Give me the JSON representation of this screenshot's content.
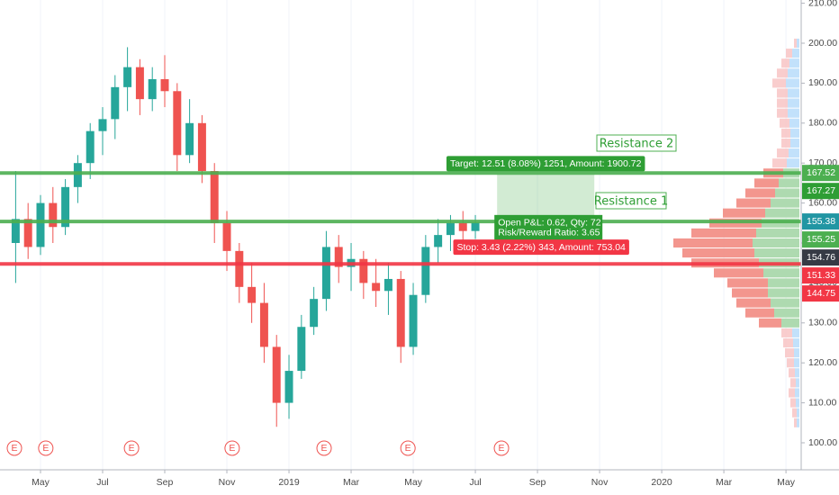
{
  "chart_data": {
    "type": "candlestick",
    "xlim": [
      2.696,
      28.49
    ],
    "ylim": [
      93.24,
      210.81
    ],
    "xticks": [
      {
        "value": 4,
        "label": "May"
      },
      {
        "value": 6,
        "label": "Jul"
      },
      {
        "value": 8,
        "label": "Sep"
      },
      {
        "value": 10,
        "label": "Nov"
      },
      {
        "value": 12,
        "label": "2019"
      },
      {
        "value": 14,
        "label": "Mar"
      },
      {
        "value": 16,
        "label": "May"
      },
      {
        "value": 18,
        "label": "Jul"
      },
      {
        "value": 20,
        "label": "Sep"
      },
      {
        "value": 22,
        "label": "Nov"
      },
      {
        "value": 24,
        "label": "2020"
      },
      {
        "value": 26,
        "label": "Mar"
      },
      {
        "value": 28,
        "label": "May"
      }
    ],
    "yticks": [
      {
        "value": 100,
        "label": "100.00"
      },
      {
        "value": 110,
        "label": "110.00"
      },
      {
        "value": 120,
        "label": "120.00"
      },
      {
        "value": 130,
        "label": "130.00"
      },
      {
        "value": 140,
        "label": "140.00"
      },
      {
        "value": 150,
        "label": "150.00"
      },
      {
        "value": 160,
        "label": "160.00"
      },
      {
        "value": 170,
        "label": "170.00"
      },
      {
        "value": 180,
        "label": "180.00"
      },
      {
        "value": 190,
        "label": "190.00"
      },
      {
        "value": 200,
        "label": "200.00"
      },
      {
        "value": 210,
        "label": "210.00"
      }
    ],
    "grid": true,
    "up_color": "#26a69a",
    "down_color": "#ef5350",
    "candles": {
      "x": [
        3.2,
        3.6,
        4.0,
        4.4,
        4.8,
        5.2,
        5.6,
        6.0,
        6.4,
        6.8,
        7.2,
        7.6,
        8.0,
        8.4,
        8.8,
        9.2,
        9.6,
        10.0,
        10.4,
        10.8,
        11.2,
        11.6,
        12.0,
        12.4,
        12.8,
        13.2,
        13.6,
        14.0,
        14.4,
        14.8,
        15.2,
        15.6,
        16.0,
        16.4,
        16.8,
        17.2,
        17.6,
        18.0
      ],
      "open": [
        150,
        156,
        149,
        160,
        154,
        164,
        170,
        178,
        181,
        189,
        194,
        186,
        191,
        188,
        172,
        180,
        168,
        155,
        148,
        139,
        135,
        124,
        110,
        118,
        129,
        136,
        149,
        144,
        146,
        140,
        138,
        141,
        124,
        137,
        149,
        152,
        155,
        153
      ],
      "high": [
        168,
        160,
        162,
        164,
        166,
        172,
        180,
        184,
        192,
        199,
        196,
        194,
        197,
        190,
        186,
        182,
        170,
        158,
        150,
        145,
        140,
        127,
        122,
        132,
        139,
        153,
        152,
        150,
        148,
        146,
        145,
        143,
        140,
        152,
        156,
        157,
        158,
        157
      ],
      "low": [
        140,
        146,
        147,
        150,
        152,
        160,
        166,
        172,
        176,
        183,
        182,
        183,
        184,
        168,
        170,
        165,
        150,
        143,
        135,
        130,
        120,
        104,
        106,
        116,
        127,
        133,
        140,
        138,
        136,
        134,
        132,
        120,
        122,
        135,
        145,
        148,
        150,
        151
      ],
      "close": [
        156,
        149,
        160,
        154,
        164,
        170,
        178,
        181,
        189,
        194,
        186,
        191,
        188,
        172,
        180,
        168,
        155,
        148,
        139,
        135,
        124,
        110,
        118,
        129,
        136,
        149,
        144,
        146,
        140,
        138,
        141,
        124,
        137,
        149,
        152,
        155,
        153,
        155.1
      ]
    },
    "volume_profile": {
      "price": [
        105,
        107.5,
        110,
        112.5,
        115,
        117.5,
        120,
        122.5,
        125,
        127.5,
        130,
        132.5,
        135,
        137.5,
        140,
        142.5,
        145,
        147.5,
        150,
        152.5,
        155,
        157.5,
        160,
        162.5,
        165,
        167.5,
        170,
        172.5,
        175,
        177.5,
        180,
        182.5,
        185,
        187.5,
        190,
        192.5,
        195,
        197.5,
        200
      ],
      "up": [
        3,
        3,
        4,
        5,
        4,
        5,
        6,
        6,
        7,
        8,
        20,
        28,
        32,
        35,
        35,
        40,
        45,
        50,
        52,
        48,
        42,
        38,
        32,
        27,
        23,
        18,
        14,
        12,
        10,
        10,
        11,
        13,
        13,
        13,
        15,
        13,
        11,
        8,
        3
      ],
      "down": [
        3,
        5,
        6,
        7,
        6,
        7,
        8,
        10,
        11,
        12,
        25,
        32,
        38,
        40,
        45,
        55,
        75,
        80,
        88,
        72,
        58,
        47,
        38,
        33,
        27,
        22,
        16,
        13,
        10,
        10,
        11,
        12,
        12,
        12,
        15,
        12,
        9,
        7,
        3
      ],
      "value_area": [
        130,
        167.5
      ],
      "colors": {
        "up": "#a5d6a7",
        "down": "#f28b82",
        "up_outside": "#bbdefb",
        "down_outside": "#f8c8c8"
      }
    },
    "events": {
      "label": "E",
      "color": "#ef5350",
      "x": [
        3.16,
        4.17,
        6.93,
        10.17,
        13.13,
        15.83,
        18.84
      ]
    },
    "price_labels": [
      {
        "value": 167.52,
        "color": "#4caf50",
        "line": true
      },
      {
        "value": 155.38,
        "color": "#2196a3",
        "line": true
      },
      {
        "value": 155.25,
        "color": "#4caf50",
        "line": false
      },
      {
        "value": 144.75,
        "color": "#f23645",
        "line": true
      }
    ],
    "position": {
      "entry": 154.76,
      "target": 167.27,
      "stop": 151.33,
      "x_start": 18.7,
      "x_end": 21.83,
      "entry_color": "#363a45",
      "target_color": "#2e9e34",
      "stop_color": "#f23645",
      "target_text": "Target: 12.51 (8.08%) 1251, Amount: 1900.72",
      "pnl_text": "Open P&L: 0.62, Qty: 72",
      "rr_text": "Risk/Reward Ratio: 3.65",
      "stop_text": "Stop: 3.43 (2.22%) 343, Amount: 753.04"
    },
    "annotations": [
      "Resistance 2",
      "Resistance 1"
    ]
  }
}
